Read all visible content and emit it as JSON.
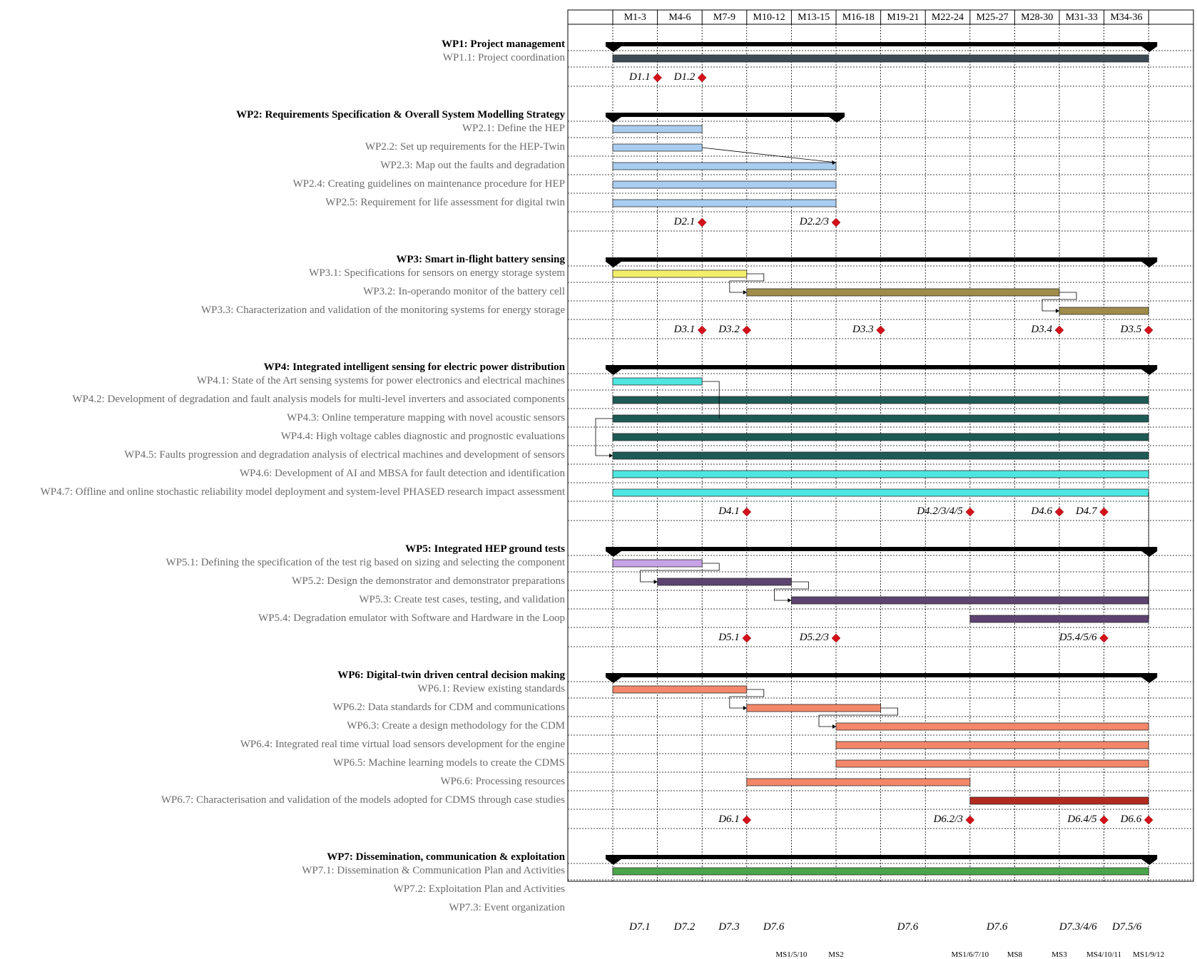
{
  "chart_data": {
    "type": "gantt",
    "periods": [
      "M1-3",
      "M4-6",
      "M7-9",
      "M10-12",
      "M13-15",
      "M16-18",
      "M19-21",
      "M22-24",
      "M25-27",
      "M28-30",
      "M31-33",
      "M34-36"
    ],
    "colors": {
      "summary": "#000000",
      "gray": "#3d4a56",
      "lightblue": "#a9cdf0",
      "yellow": "#f5ee6a",
      "olive": "#a08b4a",
      "cyan": "#4ee6e0",
      "darkteal": "#1d5a55",
      "lavender": "#c8a2e8",
      "purple": "#5c4370",
      "salmon": "#f4876a",
      "darkred": "#b22a1e",
      "green": "#4aa54a",
      "deliverable": "#d4111a",
      "milestone": "#0b2cf5"
    },
    "rows": [
      {
        "kind": "wp",
        "label": "WP1: Project management",
        "start": 1,
        "end": 12
      },
      {
        "kind": "task",
        "label": "WP1.1: Project coordination",
        "start": 1,
        "end": 12,
        "color": "gray"
      },
      {
        "kind": "deliv",
        "items": [
          {
            "label": "D1.1",
            "month": 1
          },
          {
            "label": "D1.2",
            "month": 2
          }
        ]
      },
      {
        "kind": "wp",
        "label": "WP2: Requirements Specification & Overall System Modelling Strategy",
        "start": 1,
        "end": 5
      },
      {
        "kind": "task",
        "label": "WP2.1: Define the HEP",
        "start": 1,
        "end": 2,
        "color": "lightblue"
      },
      {
        "kind": "task",
        "label": "WP2.2: Set up requirements for the HEP-Twin",
        "start": 1,
        "end": 2,
        "color": "lightblue"
      },
      {
        "kind": "task",
        "label": "WP2.3: Map out the faults and degradation",
        "start": 1,
        "end": 5,
        "color": "lightblue"
      },
      {
        "kind": "task",
        "label": "WP2.4: Creating guidelines on maintenance procedure for HEP",
        "start": 1,
        "end": 5,
        "color": "lightblue"
      },
      {
        "kind": "task",
        "label": "WP2.5: Requirement for life assessment for digital twin",
        "start": 1,
        "end": 5,
        "color": "lightblue"
      },
      {
        "kind": "deliv",
        "items": [
          {
            "label": "D2.1",
            "month": 2
          },
          {
            "label": "D2.2/3",
            "month": 5
          }
        ]
      },
      {
        "kind": "wp",
        "label": "WP3: Smart in-flight battery sensing",
        "start": 1,
        "end": 12
      },
      {
        "kind": "task",
        "label": "WP3.1: Specifications for sensors on energy storage system",
        "start": 1,
        "end": 3,
        "color": "yellow"
      },
      {
        "kind": "task",
        "label": "WP3.2: In-operando monitor of the battery cell",
        "start": 4,
        "end": 10,
        "color": "olive"
      },
      {
        "kind": "task",
        "label": "WP3.3: Characterization and validation of the monitoring systems for energy storage",
        "start": 11,
        "end": 12,
        "color": "olive"
      },
      {
        "kind": "deliv",
        "items": [
          {
            "label": "D3.1",
            "month": 2
          },
          {
            "label": "D3.2",
            "month": 3
          },
          {
            "label": "D3.3",
            "month": 6
          },
          {
            "label": "D3.4",
            "month": 10
          },
          {
            "label": "D3.5",
            "month": 12
          }
        ]
      },
      {
        "kind": "wp",
        "label": "WP4: Integrated intelligent sensing for electric power distribution",
        "start": 1,
        "end": 12
      },
      {
        "kind": "task",
        "label": "WP4.1: State of the Art sensing systems for power electronics and electrical machines",
        "start": 1,
        "end": 2,
        "color": "cyan"
      },
      {
        "kind": "task",
        "label": "WP4.2: Development of degradation and fault analysis models for multi-level inverters and associated components",
        "start": 1,
        "end": 12,
        "color": "darkteal"
      },
      {
        "kind": "task",
        "label": "WP4.3: Online temperature mapping with novel acoustic sensors",
        "start": 1,
        "end": 12,
        "color": "darkteal"
      },
      {
        "kind": "task",
        "label": "WP4.4: High voltage cables diagnostic and prognostic evaluations",
        "start": 1,
        "end": 12,
        "color": "darkteal"
      },
      {
        "kind": "task",
        "label": "WP4.5: Faults progression and degradation analysis of electrical machines and development of sensors",
        "start": 1,
        "end": 12,
        "color": "darkteal"
      },
      {
        "kind": "task",
        "label": "WP4.6: Development of AI and MBSA for fault detection and identification",
        "start": 1,
        "end": 12,
        "color": "cyan"
      },
      {
        "kind": "task",
        "label": "WP4.7: Offline and online stochastic reliability model deployment and system-level PHASED research impact assessment",
        "start": 1,
        "end": 12,
        "color": "cyan"
      },
      {
        "kind": "deliv",
        "items": [
          {
            "label": "D4.1",
            "month": 3
          },
          {
            "label": "D4.2/3/4/5",
            "month": 8
          },
          {
            "label": "D4.6",
            "month": 10
          },
          {
            "label": "D4.7",
            "month": 11
          }
        ]
      },
      {
        "kind": "wp",
        "label": "WP5: Integrated HEP ground tests",
        "start": 1,
        "end": 12
      },
      {
        "kind": "task",
        "label": "WP5.1: Defining the specification of the test rig based on sizing and selecting the component",
        "start": 1,
        "end": 2,
        "color": "lavender"
      },
      {
        "kind": "task",
        "label": "WP5.2: Design the demonstrator and demonstrator preparations",
        "start": 2,
        "end": 4,
        "color": "purple"
      },
      {
        "kind": "task",
        "label": "WP5.3: Create test cases, testing, and validation",
        "start": 5,
        "end": 12,
        "color": "purple"
      },
      {
        "kind": "task",
        "label": "WP5.4: Degradation emulator with Software and Hardware in the Loop",
        "start": 9,
        "end": 12,
        "color": "purple"
      },
      {
        "kind": "deliv",
        "items": [
          {
            "label": "D5.1",
            "month": 3
          },
          {
            "label": "D5.2/3",
            "month": 5
          },
          {
            "label": "D5.4/5/6",
            "month": 11
          }
        ]
      },
      {
        "kind": "wp",
        "label": "WP6: Digital-twin driven central decision making",
        "start": 1,
        "end": 12
      },
      {
        "kind": "task",
        "label": "WP6.1: Review existing standards",
        "start": 1,
        "end": 3,
        "color": "salmon"
      },
      {
        "kind": "task",
        "label": "WP6.2: Data standards for CDM and communications",
        "start": 4,
        "end": 6,
        "color": "salmon"
      },
      {
        "kind": "task",
        "label": "WP6.3: Create a design methodology for the CDM",
        "start": 6,
        "end": 12,
        "color": "salmon"
      },
      {
        "kind": "task",
        "label": "WP6.4: Integrated real time virtual load sensors development for the engine",
        "start": 6,
        "end": 12,
        "color": "salmon"
      },
      {
        "kind": "task",
        "label": "WP6.5: Machine learning models to create the CDMS",
        "start": 6,
        "end": 12,
        "color": "salmon"
      },
      {
        "kind": "task",
        "label": "WP6.6: Processing resources",
        "start": 4,
        "end": 8,
        "color": "salmon"
      },
      {
        "kind": "task",
        "label": "WP6.7: Characterisation and validation of the models adopted for CDMS through case studies",
        "start": 9,
        "end": 12,
        "color": "darkred"
      },
      {
        "kind": "deliv",
        "items": [
          {
            "label": "D6.1",
            "month": 3
          },
          {
            "label": "D6.2/3",
            "month": 8
          },
          {
            "label": "D6.4/5",
            "month": 11
          },
          {
            "label": "D6.6",
            "month": 12
          }
        ]
      },
      {
        "kind": "wp",
        "label": "WP7: Dissemination, communication & exploitation",
        "start": 1,
        "end": 12
      },
      {
        "kind": "task",
        "label": "WP7.1: Dissemination & Communication Plan and Activities",
        "start": 1,
        "end": 12,
        "color": "green"
      },
      {
        "kind": "task",
        "label": "WP7.2: Exploitation Plan and Activities",
        "start": 1,
        "end": 12,
        "color": "green"
      },
      {
        "kind": "task",
        "label": "WP7.3: Event organization",
        "start": 1,
        "end": 12,
        "color": "green"
      },
      {
        "kind": "deliv",
        "items": [
          {
            "label": "D7.1",
            "month": 1
          },
          {
            "label": "D7.2",
            "month": 2
          },
          {
            "label": "D7.3",
            "month": 3
          },
          {
            "label": "D7.6",
            "month": 4
          },
          {
            "label": "D7.6",
            "month": 7
          },
          {
            "label": "D7.6",
            "month": 9
          },
          {
            "label": "D7.3/4/6",
            "month": 11
          },
          {
            "label": "D7.5/6",
            "month": 12
          }
        ]
      },
      {
        "kind": "milestones",
        "items": [
          {
            "label": "MS1/5/10",
            "month": 4
          },
          {
            "label": "MS2",
            "month": 5
          },
          {
            "label": "MS1/6/7/10",
            "month": 8
          },
          {
            "label": "MS8",
            "month": 9
          },
          {
            "label": "MS3",
            "month": 10
          },
          {
            "label": "MS4/10/11",
            "month": 11
          },
          {
            "label": "MS1/9/12",
            "month": 12
          }
        ]
      }
    ]
  }
}
